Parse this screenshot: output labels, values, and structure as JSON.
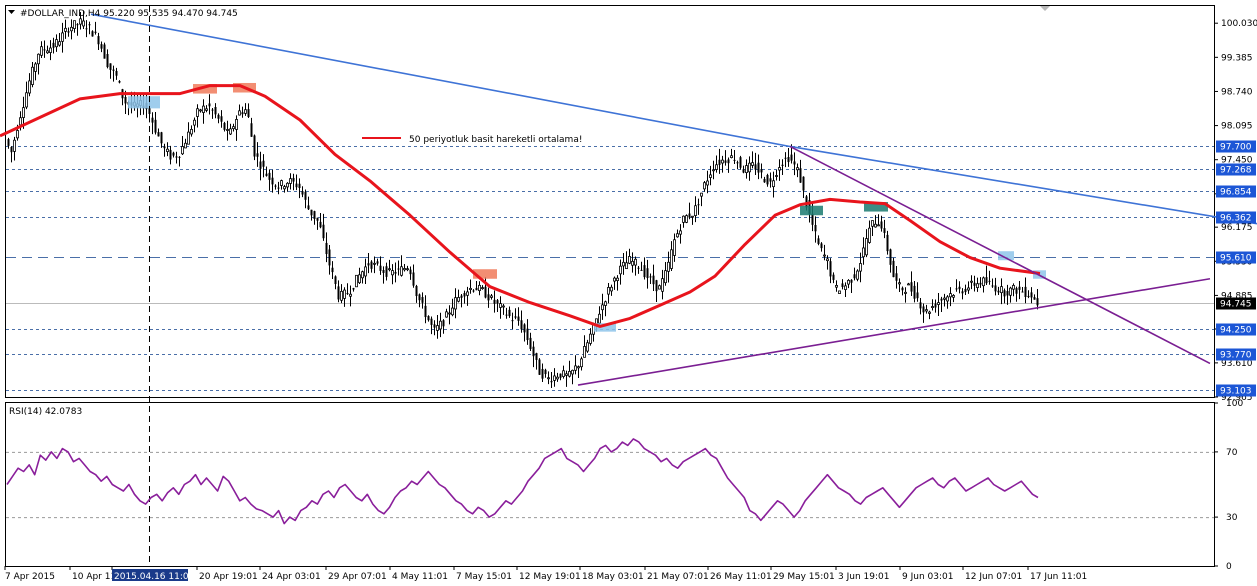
{
  "header": {
    "symbol_line": "#DOLLAR_IND,H4  95.220 95.535 94.470 94.745"
  },
  "legend": {
    "ma_label": "50 periyotluk basit hareketli ortalama!"
  },
  "rsi_panel": {
    "label": "RSI(14) 42.0783"
  },
  "colors": {
    "candles": "#000000",
    "ma_line": "#e8141c",
    "trend_blue": "#3e73d6",
    "trend_purple": "#7a1e92",
    "level_dash": "#4a6fa8",
    "price_tag": "#1c56d6",
    "current_tag": "#000000",
    "rsi_line": "#8a1f9b",
    "box_blue": "#8ec4ea",
    "box_salmon": "#f07a5a",
    "box_teal": "#1a7a70"
  },
  "chart_data": [
    {
      "type": "candlestick",
      "name": "#DOLLAR_IND,H4",
      "ylim": [
        92.965,
        100.355
      ],
      "y_ticks": [
        "100.030",
        "99.385",
        "98.740",
        "98.095",
        "97.450",
        "96.805",
        "96.175",
        "95.530",
        "94.885",
        "94.250",
        "93.610",
        "92.965"
      ],
      "x_ticks": [
        "7 Apr 2015",
        "10 Apr 11:01",
        "2015.04.16 11:01",
        "20 Apr 19:01",
        "24 Apr 03:01",
        "29 Apr 07:01",
        "4 May 11:01",
        "7 May 15:01",
        "12 May 19:01",
        "18 May 03:01",
        "21 May 07:01",
        "26 May 11:01",
        "29 May 15:01",
        "3 Jun 19:01",
        "9 Jun 03:01",
        "12 Jun 07:01",
        "17 Jun 11:01"
      ],
      "price_levels": [
        {
          "label": "97.700",
          "value": 97.7,
          "style": "dashed"
        },
        {
          "label": "97.268",
          "value": 97.268,
          "style": "dashed"
        },
        {
          "label": "96.854",
          "value": 96.854,
          "style": "dashed"
        },
        {
          "label": "96.362",
          "value": 96.362,
          "style": "dashed"
        },
        {
          "label": "95.610",
          "value": 95.61,
          "style": "long-dash"
        },
        {
          "label": "94.250",
          "value": 94.25,
          "style": "dashed"
        },
        {
          "label": "93.770",
          "value": 93.77,
          "style": "dashed"
        },
        {
          "label": "93.103",
          "value": 93.103,
          "style": "dashed"
        }
      ],
      "current_price": {
        "label": "94.745",
        "value": 94.745
      },
      "price_anchors": [
        [
          0,
          97.7
        ],
        [
          7,
          97.85
        ],
        [
          12,
          97.55
        ],
        [
          20,
          98.2
        ],
        [
          30,
          98.9
        ],
        [
          40,
          99.5
        ],
        [
          55,
          99.6
        ],
        [
          70,
          99.95
        ],
        [
          82,
          100.05
        ],
        [
          90,
          99.95
        ],
        [
          100,
          99.7
        ],
        [
          110,
          99.2
        ],
        [
          118,
          99.0
        ],
        [
          125,
          98.55
        ],
        [
          135,
          98.45
        ],
        [
          145,
          98.5
        ],
        [
          150,
          98.35
        ],
        [
          158,
          97.95
        ],
        [
          165,
          97.65
        ],
        [
          172,
          97.5
        ],
        [
          180,
          97.55
        ],
        [
          190,
          97.95
        ],
        [
          200,
          98.4
        ],
        [
          210,
          98.45
        ],
        [
          220,
          98.2
        ],
        [
          230,
          97.9
        ],
        [
          240,
          98.35
        ],
        [
          248,
          98.4
        ],
        [
          255,
          97.6
        ],
        [
          262,
          97.35
        ],
        [
          270,
          97.1
        ],
        [
          280,
          96.95
        ],
        [
          290,
          97.05
        ],
        [
          300,
          96.95
        ],
        [
          310,
          96.5
        ],
        [
          320,
          96.25
        ],
        [
          330,
          95.5
        ],
        [
          340,
          94.85
        ],
        [
          350,
          94.95
        ],
        [
          360,
          95.25
        ],
        [
          370,
          95.5
        ],
        [
          380,
          95.4
        ],
        [
          390,
          95.3
        ],
        [
          400,
          95.35
        ],
        [
          410,
          95.45
        ],
        [
          418,
          94.9
        ],
        [
          425,
          94.6
        ],
        [
          435,
          94.2
        ],
        [
          445,
          94.4
        ],
        [
          455,
          94.75
        ],
        [
          465,
          94.95
        ],
        [
          475,
          95.05
        ],
        [
          485,
          94.95
        ],
        [
          495,
          94.75
        ],
        [
          505,
          94.6
        ],
        [
          512,
          94.45
        ],
        [
          520,
          94.4
        ],
        [
          530,
          94.0
        ],
        [
          540,
          93.45
        ],
        [
          550,
          93.3
        ],
        [
          560,
          93.4
        ],
        [
          570,
          93.35
        ],
        [
          580,
          93.6
        ],
        [
          590,
          94.05
        ],
        [
          600,
          94.55
        ],
        [
          610,
          95.0
        ],
        [
          620,
          95.35
        ],
        [
          630,
          95.55
        ],
        [
          640,
          95.45
        ],
        [
          650,
          95.2
        ],
        [
          660,
          95.0
        ],
        [
          668,
          95.35
        ],
        [
          675,
          95.9
        ],
        [
          685,
          96.35
        ],
        [
          695,
          96.45
        ],
        [
          705,
          96.95
        ],
        [
          715,
          97.35
        ],
        [
          725,
          97.45
        ],
        [
          735,
          97.5
        ],
        [
          745,
          97.25
        ],
        [
          755,
          97.35
        ],
        [
          765,
          97.1
        ],
        [
          772,
          97.0
        ],
        [
          780,
          97.35
        ],
        [
          790,
          97.5
        ],
        [
          800,
          97.2
        ],
        [
          806,
          96.7
        ],
        [
          812,
          96.3
        ],
        [
          820,
          95.8
        ],
        [
          828,
          95.55
        ],
        [
          836,
          95.0
        ],
        [
          845,
          95.05
        ],
        [
          855,
          95.25
        ],
        [
          862,
          95.55
        ],
        [
          868,
          96.0
        ],
        [
          875,
          96.3
        ],
        [
          882,
          96.25
        ],
        [
          888,
          95.8
        ],
        [
          895,
          95.2
        ],
        [
          902,
          95.0
        ],
        [
          910,
          95.05
        ],
        [
          918,
          94.85
        ],
        [
          926,
          94.55
        ],
        [
          935,
          94.7
        ],
        [
          945,
          94.85
        ],
        [
          955,
          94.95
        ],
        [
          965,
          95.0
        ],
        [
          975,
          95.1
        ],
        [
          985,
          95.15
        ],
        [
          995,
          95.05
        ],
        [
          1005,
          94.95
        ],
        [
          1015,
          95.0
        ],
        [
          1025,
          94.95
        ],
        [
          1032,
          94.9
        ],
        [
          1038,
          94.745
        ]
      ],
      "ma_anchors": [
        [
          0,
          97.9
        ],
        [
          40,
          98.25
        ],
        [
          80,
          98.6
        ],
        [
          120,
          98.7
        ],
        [
          150,
          98.7
        ],
        [
          180,
          98.7
        ],
        [
          210,
          98.85
        ],
        [
          240,
          98.85
        ],
        [
          265,
          98.65
        ],
        [
          300,
          98.2
        ],
        [
          335,
          97.55
        ],
        [
          370,
          97.05
        ],
        [
          410,
          96.4
        ],
        [
          450,
          95.7
        ],
        [
          490,
          95.05
        ],
        [
          530,
          94.75
        ],
        [
          570,
          94.5
        ],
        [
          600,
          94.3
        ],
        [
          630,
          94.45
        ],
        [
          660,
          94.7
        ],
        [
          690,
          94.95
        ],
        [
          715,
          95.25
        ],
        [
          745,
          95.85
        ],
        [
          775,
          96.4
        ],
        [
          800,
          96.6
        ],
        [
          830,
          96.7
        ],
        [
          860,
          96.65
        ],
        [
          885,
          96.62
        ],
        [
          910,
          96.3
        ],
        [
          940,
          95.9
        ],
        [
          970,
          95.6
        ],
        [
          1000,
          95.4
        ],
        [
          1040,
          95.3
        ]
      ],
      "trendlines": [
        {
          "name": "upper-blue",
          "color": "trend_blue",
          "points": [
            [
              91,
              100.2
            ],
            [
              790,
              97.7
            ]
          ]
        },
        {
          "name": "lower-blue",
          "color": "trend_blue",
          "points": [
            [
              790,
              97.7
            ],
            [
              1257,
              96.24
            ]
          ]
        },
        {
          "name": "upper-purple",
          "color": "trend_purple",
          "points": [
            [
              790,
              97.7
            ],
            [
              1210,
              93.6
            ]
          ]
        },
        {
          "name": "lower-purple",
          "color": "trend_purple",
          "points": [
            [
              578,
              93.19
            ],
            [
              1210,
              95.2
            ]
          ]
        }
      ],
      "marker_boxes": [
        {
          "color": "box_blue",
          "x": [
            128,
            160
          ],
          "y": [
            98.42,
            98.65
          ]
        },
        {
          "color": "box_salmon",
          "x": [
            193,
            217
          ],
          "y": [
            98.7,
            98.88
          ]
        },
        {
          "color": "box_salmon",
          "x": [
            233,
            256
          ],
          "y": [
            98.72,
            98.9
          ]
        },
        {
          "color": "box_salmon",
          "x": [
            473,
            497
          ],
          "y": [
            95.2,
            95.38
          ]
        },
        {
          "color": "box_blue",
          "x": [
            594,
            616
          ],
          "y": [
            94.2,
            94.36
          ]
        },
        {
          "color": "box_teal",
          "x": [
            800,
            823
          ],
          "y": [
            96.4,
            96.58
          ]
        },
        {
          "color": "box_teal",
          "x": [
            864,
            888
          ],
          "y": [
            96.47,
            96.65
          ]
        },
        {
          "color": "box_blue",
          "x": [
            998,
            1014
          ],
          "y": [
            95.55,
            95.72
          ]
        },
        {
          "color": "box_blue",
          "x": [
            1033,
            1046
          ],
          "y": [
            95.2,
            95.36
          ]
        }
      ]
    },
    {
      "type": "line",
      "name": "RSI(14)",
      "ylim": [
        0,
        100
      ],
      "y_ticks": [
        "100",
        "70",
        "30",
        "0"
      ],
      "levels": [
        70,
        30
      ],
      "values": [
        50,
        55,
        60,
        58,
        62,
        56,
        68,
        65,
        70,
        66,
        72,
        70,
        64,
        66,
        62,
        58,
        56,
        52,
        55,
        50,
        48,
        46,
        50,
        44,
        40,
        38,
        42,
        44,
        40,
        45,
        48,
        44,
        50,
        52,
        56,
        50,
        54,
        50,
        46,
        55,
        52,
        46,
        40,
        42,
        38,
        35,
        34,
        32,
        30,
        34,
        26,
        30,
        28,
        34,
        36,
        40,
        38,
        44,
        46,
        42,
        48,
        50,
        46,
        42,
        40,
        44,
        38,
        34,
        32,
        36,
        42,
        46,
        48,
        52,
        50,
        54,
        58,
        54,
        50,
        48,
        44,
        40,
        38,
        34,
        32,
        36,
        34,
        30,
        32,
        36,
        40,
        38,
        42,
        46,
        52,
        56,
        60,
        66,
        68,
        70,
        72,
        66,
        64,
        62,
        58,
        62,
        66,
        72,
        74,
        70,
        72,
        76,
        74,
        78,
        76,
        72,
        70,
        68,
        64,
        66,
        62,
        60,
        64,
        66,
        68,
        70,
        72,
        68,
        66,
        60,
        54,
        50,
        46,
        42,
        34,
        32,
        28,
        32,
        36,
        40,
        38,
        34,
        30,
        34,
        40,
        44,
        48,
        52,
        56,
        52,
        48,
        46,
        44,
        40,
        38,
        42,
        44,
        46,
        48,
        44,
        40,
        36,
        40,
        44,
        48,
        50,
        52,
        54,
        50,
        48,
        52,
        54,
        50,
        46,
        48,
        50,
        52,
        54,
        50,
        48,
        46,
        48,
        50,
        52,
        48,
        44,
        42
      ]
    }
  ]
}
